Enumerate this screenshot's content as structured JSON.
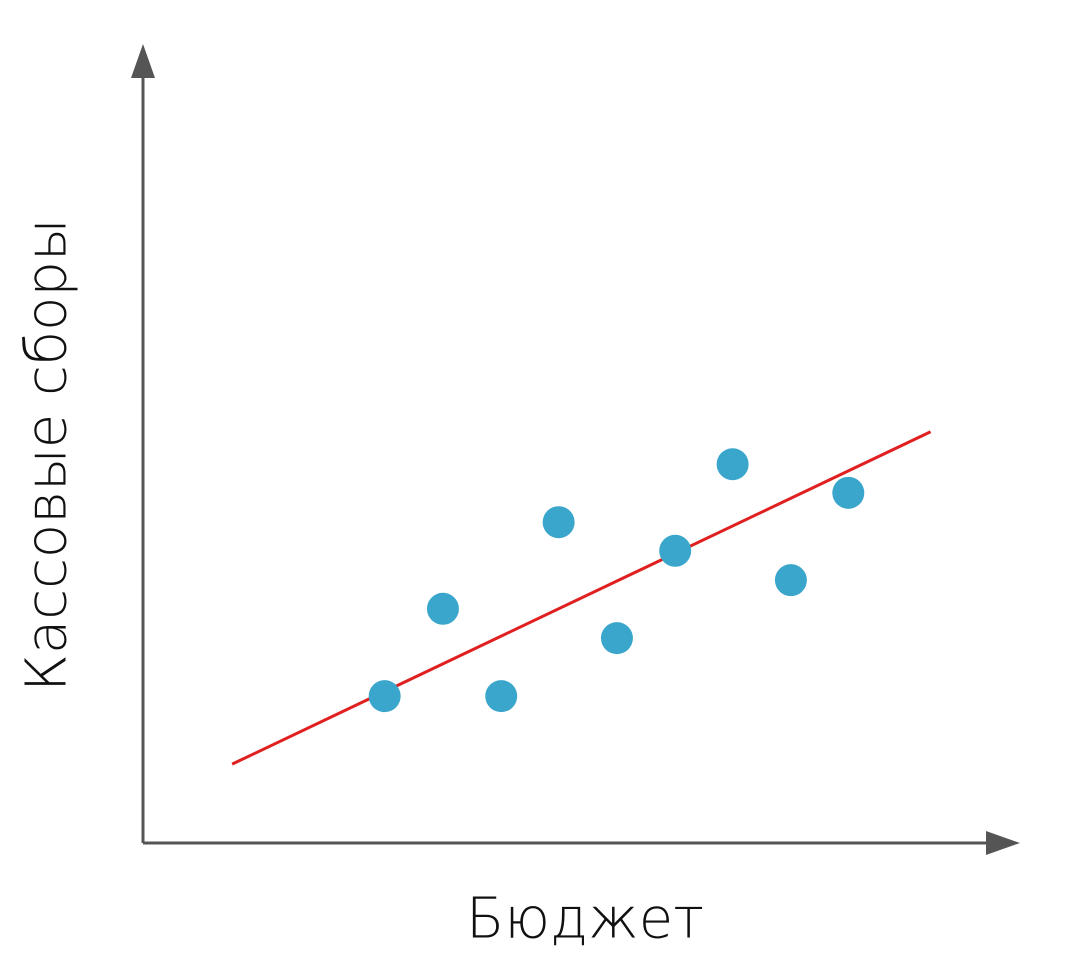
{
  "chart_data": {
    "type": "scatter",
    "x_label": "Бюджет",
    "y_label": "Кассовые сборы",
    "xlim": [
      0,
      100
    ],
    "ylim": [
      0,
      100
    ],
    "series": [
      {
        "color": "#3aa6cc",
        "x": [
          28.2,
          35.0,
          41.8,
          48.5,
          55.3,
          62.1,
          68.8,
          75.6,
          82.3
        ],
        "values": [
          19.0,
          30.3,
          19.0,
          41.5,
          26.5,
          37.8,
          49.0,
          34.0,
          45.3
        ]
      }
    ],
    "trend": {
      "color": "#e02020",
      "x": [
        10.4,
        91.9
      ],
      "values": [
        10.2,
        53.2
      ]
    }
  }
}
